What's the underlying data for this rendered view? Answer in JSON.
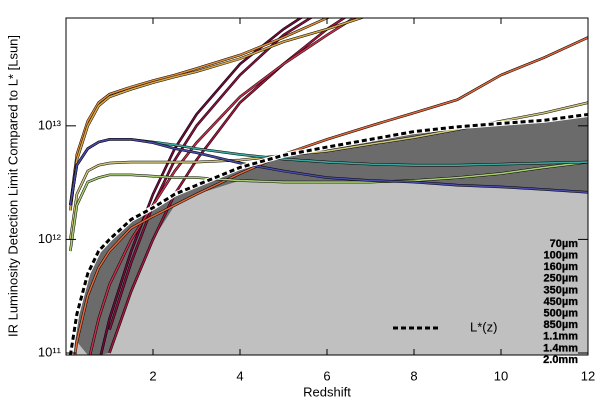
{
  "chart_data": {
    "type": "line",
    "xlabel": "Redshift",
    "ylabel": "IR Luminosity Detection Limit Compared to L* [Lsun]",
    "x": [
      0.1,
      0.25,
      0.5,
      0.75,
      1,
      1.5,
      2,
      2.5,
      3,
      4,
      5,
      6,
      7,
      8,
      9,
      10,
      11,
      12
    ],
    "xlim": [
      0,
      12
    ],
    "xticks": [
      2,
      4,
      6,
      8,
      10,
      12
    ],
    "ylim": [
      96000000000.0,
      89000000000000.0
    ],
    "ylog": true,
    "yticks": [
      {
        "value": 100000000000.0,
        "label": "10¹¹"
      },
      {
        "value": 1000000000000.0,
        "label": "10¹²"
      },
      {
        "value": 10000000000000.0,
        "label": "10¹³"
      }
    ],
    "series": [
      {
        "name": "70µm",
        "color": "#6e0a3c",
        "values": [
          null,
          null,
          null,
          79000000000.0,
          200000000000.0,
          790000000000.0,
          2500000000000.0,
          6300000000000.0,
          12600000000000.0,
          35000000000000.0,
          71000000000000.0,
          126000000000000.0,
          null,
          null,
          null,
          null,
          null,
          null
        ]
      },
      {
        "name": "100µm",
        "color": "#8a1040",
        "values": [
          null,
          null,
          null,
          null,
          160000000000.0,
          630000000000.0,
          2000000000000.0,
          5000000000000.0,
          10000000000000.0,
          28000000000000.0,
          63000000000000.0,
          110000000000000.0,
          null,
          null,
          null,
          null,
          null,
          null
        ]
      },
      {
        "name": "160µm",
        "color": "#a3163f",
        "values": [
          null,
          null,
          null,
          null,
          100000000000.0,
          350000000000.0,
          1000000000000.0,
          2500000000000.0,
          5000000000000.0,
          16000000000000.0,
          35000000000000.0,
          71000000000000.0,
          126000000000000.0,
          null,
          null,
          null,
          null,
          null
        ]
      },
      {
        "name": "250µm",
        "color": "#c4304a",
        "values": [
          null,
          null,
          79000000000.0,
          200000000000.0,
          400000000000.0,
          1000000000000.0,
          2000000000000.0,
          4000000000000.0,
          7100000000000.0,
          18000000000000.0,
          35000000000000.0,
          63000000000000.0,
          110000000000000.0,
          null,
          null,
          null,
          null,
          null
        ]
      },
      {
        "name": "350µm",
        "color": "#e2673a",
        "values": [
          50000000000.0,
          126000000000.0,
          320000000000.0,
          560000000000.0,
          790000000000.0,
          1260000000000.0,
          1600000000000.0,
          2000000000000.0,
          2500000000000.0,
          3800000000000.0,
          5600000000000.0,
          7600000000000.0,
          10000000000000.0,
          13000000000000.0,
          17000000000000.0,
          28000000000000.0,
          40000000000000.0,
          60000000000000.0
        ]
      },
      {
        "name": "450µm",
        "color": "#e08c3a",
        "values": [
          2000000000000.0,
          5600000000000.0,
          11000000000000.0,
          16000000000000.0,
          19000000000000.0,
          22000000000000.0,
          25000000000000.0,
          28000000000000.0,
          32000000000000.0,
          42000000000000.0,
          60000000000000.0,
          89000000000000.0,
          126000000000000.0,
          null,
          null,
          null,
          null,
          null
        ]
      },
      {
        "name": "500µm",
        "color": "#d8a544",
        "values": [
          1800000000000.0,
          5000000000000.0,
          10000000000000.0,
          15000000000000.0,
          18000000000000.0,
          21000000000000.0,
          24000000000000.0,
          27000000000000.0,
          30000000000000.0,
          39000000000000.0,
          55000000000000.0,
          71000000000000.0,
          95000000000000.0,
          null,
          null,
          null,
          null,
          null
        ]
      },
      {
        "name": "850µm",
        "color": "#cfc47a",
        "values": [
          1000000000000.0,
          2500000000000.0,
          4000000000000.0,
          4500000000000.0,
          4700000000000.0,
          4800000000000.0,
          4800000000000.0,
          4800000000000.0,
          4800000000000.0,
          5000000000000.0,
          5500000000000.0,
          6000000000000.0,
          6900000000000.0,
          7900000000000.0,
          9300000000000.0,
          11000000000000.0,
          13000000000000.0,
          16000000000000.0
        ]
      },
      {
        "name": "1.1mm",
        "color": "#a9cf72",
        "values": [
          790000000000.0,
          2000000000000.0,
          3200000000000.0,
          3500000000000.0,
          3700000000000.0,
          3700000000000.0,
          3600000000000.0,
          3500000000000.0,
          3500000000000.0,
          3300000000000.0,
          3200000000000.0,
          3200000000000.0,
          3200000000000.0,
          3300000000000.0,
          3500000000000.0,
          3800000000000.0,
          4300000000000.0,
          4800000000000.0
        ]
      },
      {
        "name": "1.4mm",
        "color": "#3ea89e",
        "values": [
          2000000000000.0,
          4500000000000.0,
          6300000000000.0,
          7200000000000.0,
          7600000000000.0,
          7600000000000.0,
          7200000000000.0,
          6800000000000.0,
          6300000000000.0,
          5600000000000.0,
          5100000000000.0,
          4800000000000.0,
          4600000000000.0,
          4500000000000.0,
          4500000000000.0,
          4600000000000.0,
          4700000000000.0,
          4800000000000.0
        ]
      },
      {
        "name": "2.0mm",
        "color": "#4a4aa8",
        "values": [
          2000000000000.0,
          4500000000000.0,
          6300000000000.0,
          7200000000000.0,
          7600000000000.0,
          7600000000000.0,
          7100000000000.0,
          6300000000000.0,
          5800000000000.0,
          4700000000000.0,
          4000000000000.0,
          3500000000000.0,
          3300000000000.0,
          3200000000000.0,
          3000000000000.0,
          2900000000000.0,
          2750000000000.0,
          2600000000000.0
        ]
      }
    ],
    "reference": {
      "name": "L*(z)",
      "color": "#000000",
      "values": [
        95000000000.0,
        220000000000.0,
        500000000000.0,
        790000000000.0,
        1000000000000.0,
        1500000000000.0,
        1900000000000.0,
        2500000000000.0,
        3000000000000.0,
        4300000000000.0,
        5500000000000.0,
        6500000000000.0,
        7600000000000.0,
        8900000000000.0,
        9800000000000.0,
        10500000000000.0,
        11200000000000.0,
        12600000000000.0
      ]
    }
  }
}
